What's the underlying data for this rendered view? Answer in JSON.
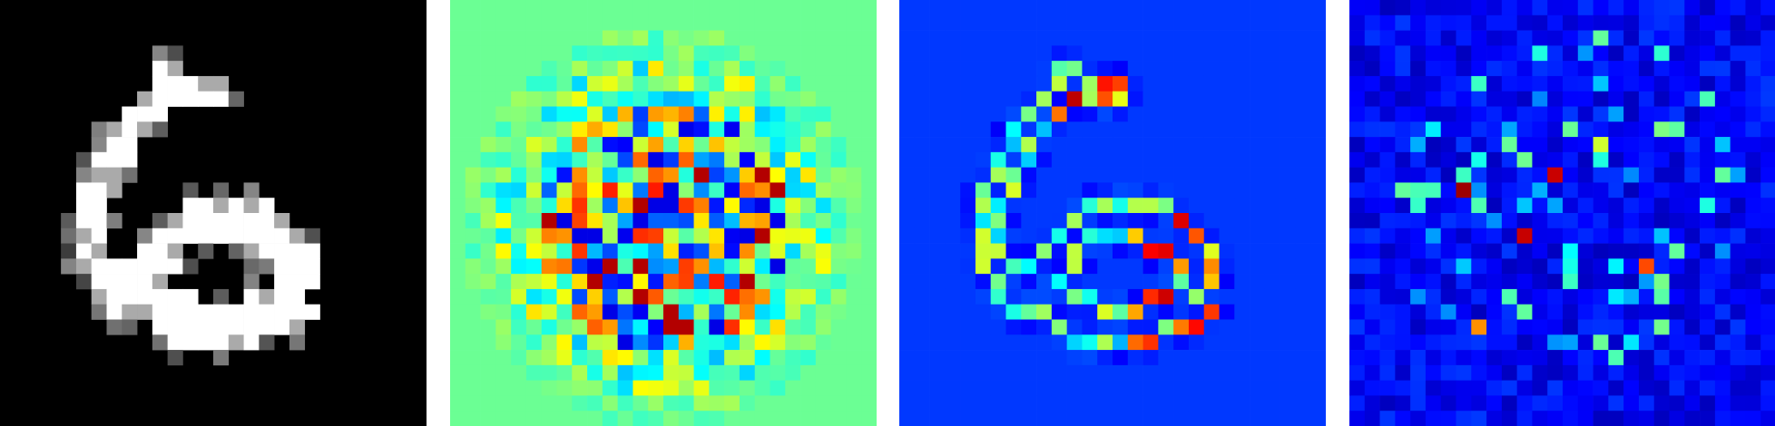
{
  "panels": [
    {
      "name": "input-digit",
      "colormap": "gray",
      "background": "#000000",
      "grid": [
        "............................",
        "............................",
        "............................",
        "........................... ",
        "..........##...............",
        "..........#####............",
        ".........######............",
        "........###...............",
        ".......###.................",
        ".......##..................",
        "......###..................",
        "......##...................",
        ".....###...................",
        ".....##.....######.........",
        ".....##....########........",
        ".....##...##########.......",
        ".....##..###....#####......",
        ".....#######......###......",
        "......#####.......###......",
        "......#######...####.......",
        ".......##############......",
        "..........##########.......",
        "...........######..........",
        "............................",
        "............................",
        "............................",
        "............................",
        "............................"
      ]
    },
    {
      "name": "heatmap-attribution-1",
      "colormap": "jet",
      "background": "#5ffb9c"
    },
    {
      "name": "heatmap-attribution-2",
      "colormap": "jet",
      "background": "#0000ee"
    },
    {
      "name": "heatmap-attribution-3",
      "colormap": "jet",
      "background": "#00009a"
    }
  ]
}
